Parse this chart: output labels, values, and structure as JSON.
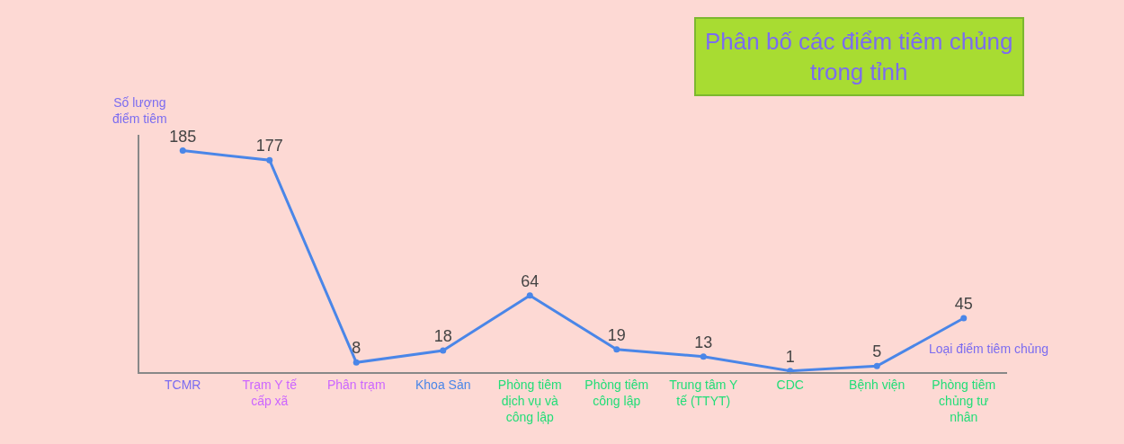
{
  "chart_data": {
    "type": "line",
    "title": "Phân bố các điểm tiêm chủng trong tỉnh",
    "xlabel": "Loại điểm tiêm chủng",
    "ylabel": "Số lượng điểm tiêm",
    "categories": [
      "TCMR",
      "Trạm Y tế cấp xã",
      "Phân trạm",
      "Khoa Sản",
      "Phòng tiêm dịch vụ và công lập",
      "Phòng tiêm công lập",
      "Trung tâm Y tế (TTYT)",
      "CDC",
      "Bệnh viện",
      "Phòng tiêm chủng tư nhân"
    ],
    "series": [
      {
        "color": "#4a86e8",
        "values": [
          185,
          177,
          8,
          18,
          64,
          19,
          13,
          1,
          5,
          45
        ]
      }
    ],
    "data_labels": true,
    "marker": "circle",
    "line_style": "solid",
    "grid": false,
    "legend": false
  }
}
